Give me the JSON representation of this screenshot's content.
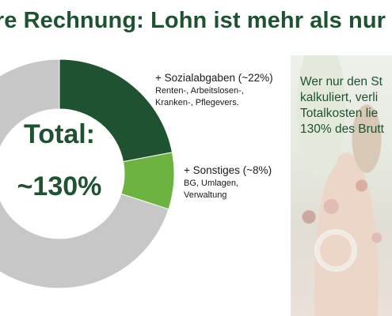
{
  "slide": {
    "title": "hre Rechnung: Lohn ist mehr als nur",
    "center_label": [
      "Total:",
      "~130%"
    ],
    "side_text": [
      "Wer nur den St",
      "kalkuliert, verli",
      "Totalkosten lie",
      "130% des Brutt"
    ]
  },
  "annotations": [
    {
      "head": "+ Sozialabgaben (~22%)",
      "detail": [
        "Renten-, Arbeitslosen-,",
        "Kranken-, Pflegevers."
      ]
    },
    {
      "head": "+ Sonstiges (~8%)",
      "detail": [
        "BG, Umlagen,",
        "Verwaltung"
      ]
    }
  ],
  "chart_data": {
    "type": "pie",
    "variant": "donut",
    "center_text": "Total: ~130%",
    "series": [
      {
        "name": "Sozialabgaben",
        "value": 22,
        "color": "#1e5230"
      },
      {
        "name": "Sonstiges",
        "value": 8,
        "color": "#6db33f"
      },
      {
        "name": "",
        "value": 70,
        "color": "#c7c7c7"
      }
    ]
  }
}
